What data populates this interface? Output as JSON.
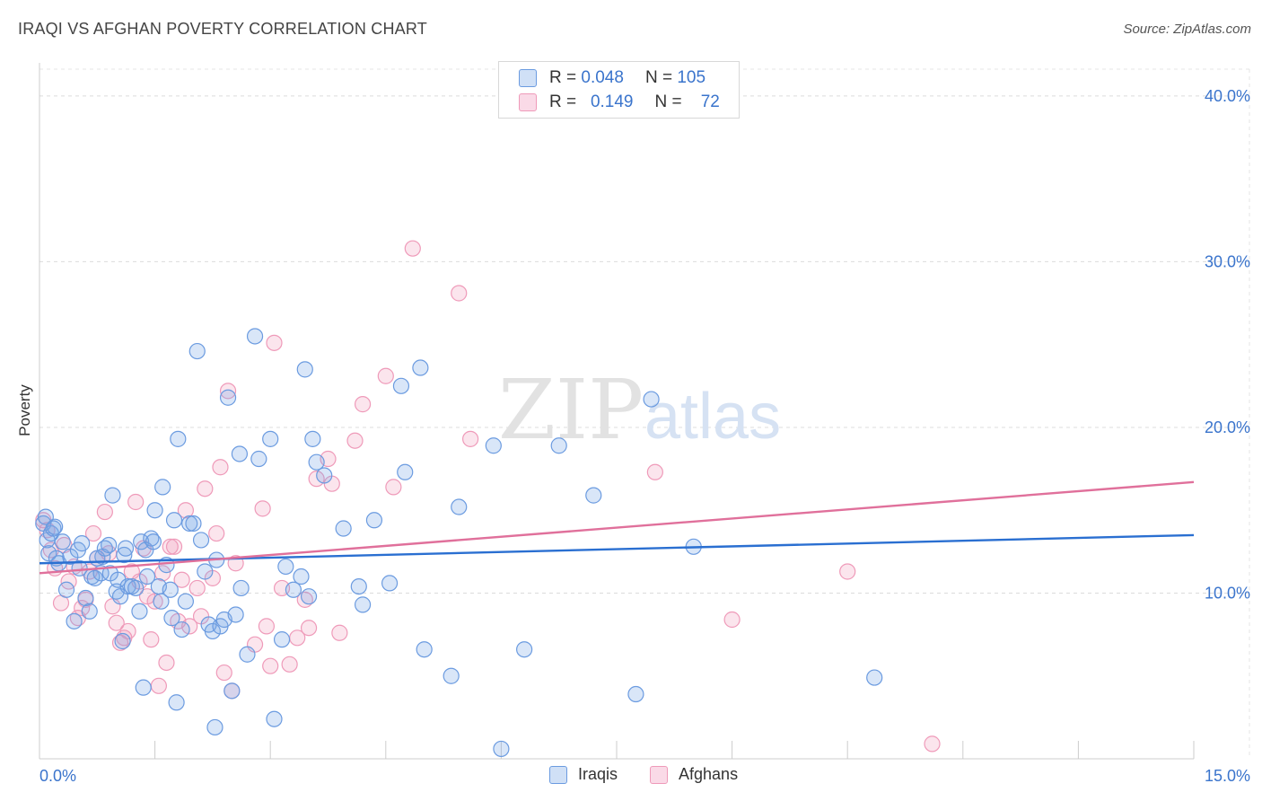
{
  "title": "IRAQI VS AFGHAN POVERTY CORRELATION CHART",
  "source": "Source: ZipAtlas.com",
  "watermark": {
    "zip": "ZIP",
    "atlas": "atlas"
  },
  "colors": {
    "iraqi_fill": "rgba(120,165,230,0.28)",
    "iraqi_stroke": "#6b9be0",
    "iraqi_line": "#2a6fd1",
    "afghan_fill": "rgba(240,150,185,0.25)",
    "afghan_stroke": "#ef9ab9",
    "afghan_line": "#e0709b",
    "axis_text": "#3a74cc"
  },
  "stats": [
    {
      "r_label": "R =",
      "r_value": "0.048",
      "n_label": "N =",
      "n_value": "105"
    },
    {
      "r_label": "R =",
      "r_value": "0.149",
      "n_label": "N =",
      "n_value": "72"
    }
  ],
  "legend": [
    "Iraqis",
    "Afghans"
  ],
  "chart_data": {
    "type": "scatter",
    "title": "IRAQI VS AFGHAN POVERTY CORRELATION CHART",
    "xlabel": "",
    "ylabel": "Poverty",
    "xlim": [
      0,
      15
    ],
    "ylim": [
      0,
      42
    ],
    "x_tick_labels": [
      "0.0%",
      "15.0%"
    ],
    "y_ticks": [
      10,
      20,
      30,
      40
    ],
    "y_tick_labels": [
      "10.0%",
      "20.0%",
      "30.0%",
      "40.0%"
    ],
    "grid": true,
    "legend_position": "top-center",
    "series": [
      {
        "name": "Iraqis",
        "r": 0.048,
        "n": 105,
        "trend": {
          "x": [
            0,
            15
          ],
          "y": [
            11.8,
            13.5
          ]
        },
        "points": [
          [
            0.05,
            14.2
          ],
          [
            0.1,
            13.2
          ],
          [
            0.12,
            12.4
          ],
          [
            0.15,
            13.6
          ],
          [
            0.2,
            14
          ],
          [
            0.22,
            12.1
          ],
          [
            0.25,
            11.8
          ],
          [
            0.3,
            13.1
          ],
          [
            0.35,
            10.2
          ],
          [
            0.4,
            12.2
          ],
          [
            0.45,
            8.3
          ],
          [
            0.5,
            12.6
          ],
          [
            0.52,
            11.5
          ],
          [
            0.55,
            13
          ],
          [
            0.6,
            9.7
          ],
          [
            0.65,
            8.9
          ],
          [
            0.68,
            11
          ],
          [
            0.72,
            10.9
          ],
          [
            0.75,
            12.1
          ],
          [
            0.8,
            11.2
          ],
          [
            0.82,
            12.2
          ],
          [
            0.85,
            12.7
          ],
          [
            0.9,
            12.9
          ],
          [
            0.92,
            11.2
          ],
          [
            0.95,
            15.9
          ],
          [
            1.0,
            10.1
          ],
          [
            1.02,
            10.8
          ],
          [
            1.05,
            9.8
          ],
          [
            1.08,
            7.1
          ],
          [
            1.1,
            12.3
          ],
          [
            1.12,
            12.7
          ],
          [
            1.15,
            10.4
          ],
          [
            1.2,
            10.4
          ],
          [
            1.25,
            10.3
          ],
          [
            1.3,
            8.9
          ],
          [
            1.32,
            13.1
          ],
          [
            1.35,
            4.3
          ],
          [
            1.38,
            12.6
          ],
          [
            1.4,
            11
          ],
          [
            1.45,
            13.3
          ],
          [
            1.48,
            13.1
          ],
          [
            1.5,
            15
          ],
          [
            1.55,
            10.4
          ],
          [
            1.58,
            9.5
          ],
          [
            1.6,
            16.4
          ],
          [
            1.65,
            11.7
          ],
          [
            1.7,
            10.2
          ],
          [
            1.72,
            8.5
          ],
          [
            1.75,
            14.4
          ],
          [
            1.78,
            3.4
          ],
          [
            1.8,
            19.3
          ],
          [
            1.85,
            7.8
          ],
          [
            1.9,
            9.5
          ],
          [
            1.95,
            14.2
          ],
          [
            2.0,
            14.2
          ],
          [
            2.05,
            24.6
          ],
          [
            2.1,
            13.2
          ],
          [
            2.15,
            11.3
          ],
          [
            2.2,
            8.1
          ],
          [
            2.25,
            7.7
          ],
          [
            2.28,
            1.9
          ],
          [
            2.3,
            12
          ],
          [
            2.35,
            8
          ],
          [
            2.4,
            8.4
          ],
          [
            2.45,
            21.8
          ],
          [
            2.5,
            4.1
          ],
          [
            2.55,
            8.7
          ],
          [
            2.6,
            18.4
          ],
          [
            2.62,
            10.3
          ],
          [
            2.7,
            6.3
          ],
          [
            2.8,
            25.5
          ],
          [
            2.85,
            18.1
          ],
          [
            3.0,
            19.3
          ],
          [
            3.05,
            2.4
          ],
          [
            3.15,
            7.2
          ],
          [
            3.2,
            11.6
          ],
          [
            3.3,
            10.2
          ],
          [
            3.4,
            11
          ],
          [
            3.45,
            23.5
          ],
          [
            3.5,
            9.8
          ],
          [
            3.55,
            19.3
          ],
          [
            3.6,
            17.9
          ],
          [
            3.7,
            17.1
          ],
          [
            3.95,
            13.9
          ],
          [
            4.15,
            10.4
          ],
          [
            4.2,
            9.3
          ],
          [
            4.35,
            14.4
          ],
          [
            4.55,
            10.6
          ],
          [
            4.7,
            22.5
          ],
          [
            4.75,
            17.3
          ],
          [
            4.95,
            23.6
          ],
          [
            5.0,
            6.6
          ],
          [
            5.35,
            5
          ],
          [
            5.45,
            15.2
          ],
          [
            5.9,
            18.9
          ],
          [
            6.0,
            0.6
          ],
          [
            6.3,
            6.6
          ],
          [
            6.75,
            18.9
          ],
          [
            7.2,
            15.9
          ],
          [
            7.75,
            3.9
          ],
          [
            7.95,
            21.7
          ],
          [
            8.5,
            12.8
          ],
          [
            10.85,
            4.9
          ],
          [
            0.08,
            14.6
          ],
          [
            0.18,
            13.9
          ]
        ]
      },
      {
        "name": "Afghans",
        "r": 0.149,
        "n": 72,
        "trend": {
          "x": [
            0,
            15
          ],
          "y": [
            11.2,
            16.7
          ]
        },
        "points": [
          [
            0.05,
            14.4
          ],
          [
            0.1,
            13.8
          ],
          [
            0.15,
            12.6
          ],
          [
            0.2,
            11.5
          ],
          [
            0.28,
            9.4
          ],
          [
            0.32,
            12.9
          ],
          [
            0.38,
            10.7
          ],
          [
            0.45,
            11.6
          ],
          [
            0.5,
            8.5
          ],
          [
            0.55,
            9.1
          ],
          [
            0.6,
            9.6
          ],
          [
            0.65,
            11.3
          ],
          [
            0.7,
            13.6
          ],
          [
            0.75,
            12.1
          ],
          [
            0.85,
            14.9
          ],
          [
            0.9,
            12.4
          ],
          [
            0.95,
            9.2
          ],
          [
            1.0,
            8.2
          ],
          [
            1.05,
            7
          ],
          [
            1.1,
            7.3
          ],
          [
            1.15,
            7.7
          ],
          [
            1.2,
            11.3
          ],
          [
            1.25,
            15.5
          ],
          [
            1.3,
            10.7
          ],
          [
            1.35,
            12.7
          ],
          [
            1.4,
            9.8
          ],
          [
            1.45,
            7.2
          ],
          [
            1.5,
            9.5
          ],
          [
            1.55,
            4.4
          ],
          [
            1.6,
            11.2
          ],
          [
            1.65,
            5.8
          ],
          [
            1.7,
            12.8
          ],
          [
            1.75,
            12.8
          ],
          [
            1.8,
            8.3
          ],
          [
            1.85,
            10.8
          ],
          [
            1.9,
            15
          ],
          [
            1.95,
            8
          ],
          [
            2.05,
            10.3
          ],
          [
            2.1,
            8.6
          ],
          [
            2.15,
            16.3
          ],
          [
            2.25,
            10.9
          ],
          [
            2.3,
            13.6
          ],
          [
            2.35,
            17.6
          ],
          [
            2.4,
            5.2
          ],
          [
            2.45,
            22.2
          ],
          [
            2.5,
            4.1
          ],
          [
            2.55,
            11.8
          ],
          [
            2.8,
            6.9
          ],
          [
            2.9,
            15.1
          ],
          [
            2.95,
            8
          ],
          [
            3.0,
            5.6
          ],
          [
            3.05,
            25.1
          ],
          [
            3.15,
            10.3
          ],
          [
            3.25,
            5.7
          ],
          [
            3.35,
            7.3
          ],
          [
            3.45,
            9.6
          ],
          [
            3.5,
            7.9
          ],
          [
            3.6,
            16.9
          ],
          [
            3.75,
            18.1
          ],
          [
            3.8,
            16.6
          ],
          [
            3.9,
            7.6
          ],
          [
            4.1,
            19.2
          ],
          [
            4.2,
            21.4
          ],
          [
            4.5,
            23.1
          ],
          [
            4.6,
            16.4
          ],
          [
            4.85,
            30.8
          ],
          [
            5.45,
            28.1
          ],
          [
            5.6,
            19.3
          ],
          [
            8.0,
            17.3
          ],
          [
            9.0,
            8.4
          ],
          [
            10.5,
            11.3
          ],
          [
            11.6,
            0.9
          ]
        ]
      }
    ]
  }
}
